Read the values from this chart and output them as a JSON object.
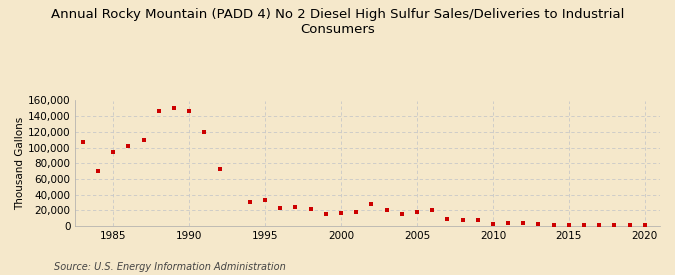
{
  "title": "Annual Rocky Mountain (PADD 4) No 2 Diesel High Sulfur Sales/Deliveries to Industrial\nConsumers",
  "ylabel": "Thousand Gallons",
  "source": "Source: U.S. Energy Information Administration",
  "background_color": "#f5e8cb",
  "plot_bg_color": "#f5e8cb",
  "marker_color": "#cc0000",
  "years": [
    1983,
    1984,
    1985,
    1986,
    1987,
    1988,
    1989,
    1990,
    1991,
    1992,
    1993,
    1994,
    1995,
    1996,
    1997,
    1998,
    1999,
    2000,
    2001,
    2002,
    2003,
    2004,
    2005,
    2006,
    2007,
    2008,
    2009,
    2010,
    2011,
    2012,
    2013,
    2014,
    2015,
    2016,
    2017,
    2018,
    2019,
    2020
  ],
  "values": [
    107000,
    70000,
    94000,
    102000,
    109000,
    146000,
    150000,
    147000,
    120000,
    72000,
    null,
    31000,
    33000,
    23000,
    24000,
    22000,
    15000,
    16000,
    18000,
    28000,
    20000,
    15000,
    18000,
    20000,
    9000,
    8000,
    7000,
    2000,
    4000,
    4000,
    2000,
    1000,
    1000,
    1000,
    1000,
    1000,
    500,
    500
  ],
  "xlim": [
    1982.5,
    2021
  ],
  "ylim": [
    0,
    160000
  ],
  "yticks": [
    0,
    20000,
    40000,
    60000,
    80000,
    100000,
    120000,
    140000,
    160000
  ],
  "ytick_labels": [
    "0",
    "20,000",
    "40,000",
    "60,000",
    "80,000",
    "100,000",
    "120,000",
    "140,000",
    "160,000"
  ],
  "xticks": [
    1985,
    1990,
    1995,
    2000,
    2005,
    2010,
    2015,
    2020
  ],
  "grid_color": "#c8c8c8",
  "title_fontsize": 9.5,
  "axis_fontsize": 7.5,
  "source_fontsize": 7
}
